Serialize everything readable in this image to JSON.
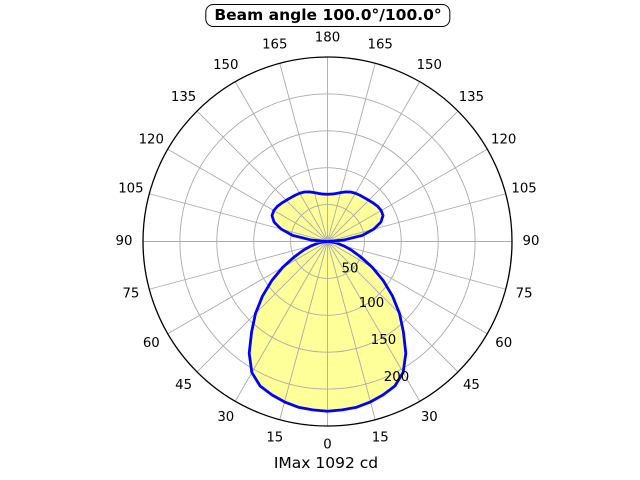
{
  "title": {
    "text": "Beam angle 100.0°/100.0°"
  },
  "footer": {
    "text": "IMax 1092 cd"
  },
  "chart_data": {
    "type": "line",
    "subtype": "polar-intensity-distribution",
    "title": "Beam angle 100.0°/100.0°",
    "annotation": "IMax 1092 cd",
    "imax_cd": 1092,
    "beam_angle_deg": [
      100.0,
      100.0
    ],
    "orientation": "0-degrees-at-bottom, symmetric left/right",
    "grid": true,
    "angle_step_deg": 5,
    "angles_deg": [
      0,
      5,
      10,
      15,
      20,
      25,
      30,
      35,
      40,
      45,
      50,
      55,
      60,
      65,
      70,
      75,
      80,
      85,
      90,
      95,
      100,
      105,
      110,
      115,
      120,
      125,
      130,
      135,
      140,
      145,
      150,
      155,
      160,
      165,
      170,
      175,
      180
    ],
    "intensity": [
      230,
      229,
      228,
      225,
      221,
      216,
      205,
      185,
      160,
      138,
      115,
      92,
      70,
      50,
      35,
      23,
      13,
      5,
      0,
      22,
      48,
      65,
      77,
      83,
      84,
      83,
      81,
      79,
      77.5,
      76.5,
      75.5,
      74,
      71.5,
      68.5,
      66,
      64.5,
      64
    ],
    "symmetric_mirror": true,
    "r_ticks": [
      50,
      100,
      150,
      200
    ],
    "r_max": 250,
    "theta_ticks_deg": [
      0,
      15,
      30,
      45,
      60,
      75,
      90,
      105,
      120,
      135,
      150,
      165,
      180
    ],
    "colors": {
      "curve": "#0000ff",
      "fill": "#ffff99",
      "grid": "#ababab",
      "outer_circle": "#000000",
      "text": "#000000",
      "background": "#ffffff"
    }
  }
}
